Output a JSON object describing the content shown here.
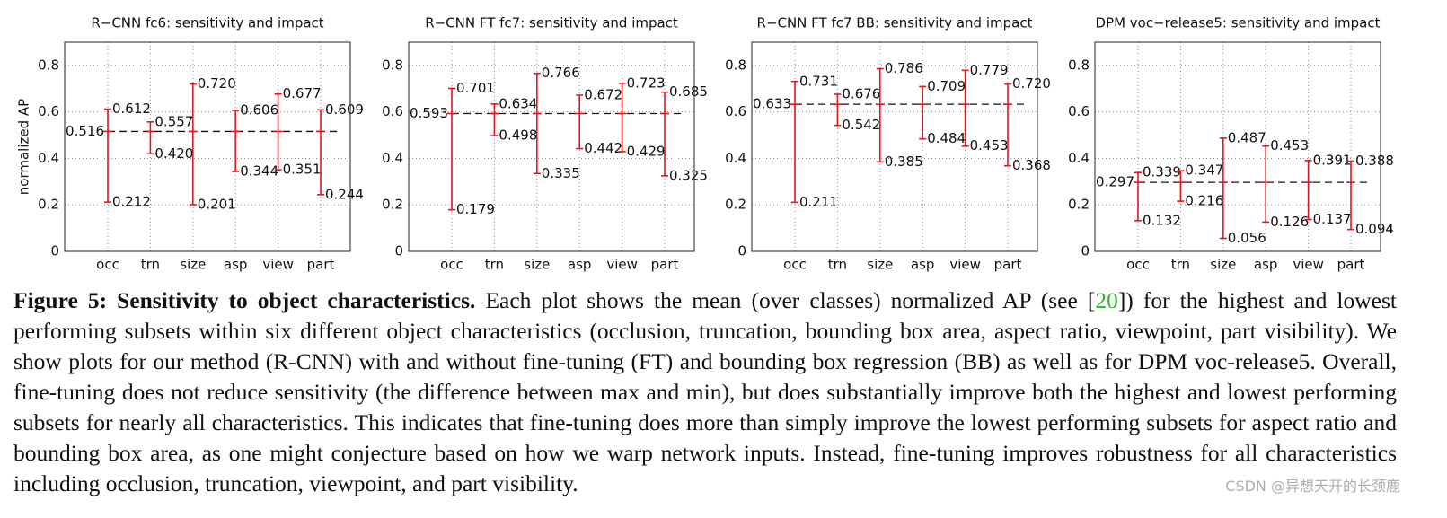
{
  "chart_data": [
    {
      "type": "errorbar",
      "title": "R−CNN fc6: sensitivity and impact",
      "ylabel": "normalized AP",
      "categories": [
        "occ",
        "trn",
        "size",
        "asp",
        "view",
        "part"
      ],
      "mean": 0.516,
      "mean_label": "0.516",
      "highs": [
        0.612,
        0.557,
        0.72,
        0.606,
        0.677,
        0.609
      ],
      "highs_labels": [
        "0.612",
        "0.557",
        "0.720",
        "0.606",
        "0.677",
        "0.609"
      ],
      "lows": [
        0.212,
        0.42,
        0.201,
        0.344,
        0.351,
        0.244
      ],
      "lows_labels": [
        "0.212",
        "0.420",
        "0.201",
        "0.344",
        "0.351",
        "0.244"
      ],
      "color": "#e8141b",
      "ylim": [
        0,
        0.9
      ],
      "yticks": [
        0,
        0.2,
        0.4,
        0.6,
        0.8
      ],
      "grid": true
    },
    {
      "type": "errorbar",
      "title": "R−CNN FT fc7: sensitivity and impact",
      "categories": [
        "occ",
        "trn",
        "size",
        "asp",
        "view",
        "part"
      ],
      "mean": 0.593,
      "mean_label": "0.593",
      "highs": [
        0.701,
        0.634,
        0.766,
        0.672,
        0.723,
        0.685
      ],
      "highs_labels": [
        "0.701",
        "0.634",
        "0.766",
        "0.672",
        "0.723",
        "0.685"
      ],
      "lows": [
        0.179,
        0.498,
        0.335,
        0.442,
        0.429,
        0.325
      ],
      "lows_labels": [
        "0.179",
        "0.498",
        "0.335",
        "0.442",
        "0.429",
        "0.325"
      ],
      "color": "#e8141b",
      "ylim": [
        0,
        0.9
      ],
      "yticks": [
        0,
        0.2,
        0.4,
        0.6,
        0.8
      ],
      "grid": true
    },
    {
      "type": "errorbar",
      "title": "R−CNN FT fc7 BB: sensitivity and impact",
      "categories": [
        "occ",
        "trn",
        "size",
        "asp",
        "view",
        "part"
      ],
      "mean": 0.633,
      "mean_label": "0.633",
      "highs": [
        0.731,
        0.676,
        0.786,
        0.709,
        0.779,
        0.72
      ],
      "highs_labels": [
        "0.731",
        "0.676",
        "0.786",
        "0.709",
        "0.779",
        "0.720"
      ],
      "lows": [
        0.211,
        0.542,
        0.385,
        0.484,
        0.453,
        0.368
      ],
      "lows_labels": [
        "0.211",
        "0.542",
        "0.385",
        "0.484",
        "0.453",
        "0.368"
      ],
      "color": "#e8141b",
      "ylim": [
        0,
        0.9
      ],
      "yticks": [
        0,
        0.2,
        0.4,
        0.6,
        0.8
      ],
      "grid": true
    },
    {
      "type": "errorbar",
      "title": "DPM voc−release5: sensitivity and impact",
      "categories": [
        "occ",
        "trn",
        "size",
        "asp",
        "view",
        "part"
      ],
      "mean": 0.297,
      "mean_label": "0.297",
      "highs": [
        0.339,
        0.347,
        0.487,
        0.453,
        0.391,
        0.388
      ],
      "highs_labels": [
        "0.339",
        "0.347",
        "0.487",
        "0.453",
        "0.391",
        "0.388"
      ],
      "lows": [
        0.132,
        0.216,
        0.056,
        0.126,
        0.137,
        0.094
      ],
      "lows_labels": [
        "0.132",
        "0.216",
        "0.056",
        "0.126",
        "0.137",
        "0.094"
      ],
      "color": "#e8141b",
      "ylim": [
        0,
        0.9
      ],
      "yticks": [
        0,
        0.2,
        0.4,
        0.6,
        0.8
      ],
      "grid": true
    }
  ],
  "caption": {
    "label": "Figure 5: Sensitivity to object characteristics.",
    "text_1": "Each plot shows the mean (over classes) normalized AP (see [",
    "ref": "20",
    "text_2": "]) for the highest and lowest performing subsets within six different object characteristics (occlusion, truncation, bounding box area, aspect ratio, viewpoint, part visibility). We show plots for our method (R-CNN) with and without fine-tuning (FT) and bounding box regression (BB) as well as for DPM voc-release5. Overall, fine-tuning does not reduce sensitivity (the difference between max and min), but does substantially improve both the highest and lowest performing subsets for nearly all characteristics. This indicates that fine-tuning does more than simply improve the lowest performing subsets for aspect ratio and bounding box area, as one might conjecture based on how we warp network inputs. Instead, fine-tuning improves robustness for all characteristics including occlusion, truncation, viewpoint, and part visibility."
  },
  "watermark": "CSDN @异想天开的长颈鹿"
}
